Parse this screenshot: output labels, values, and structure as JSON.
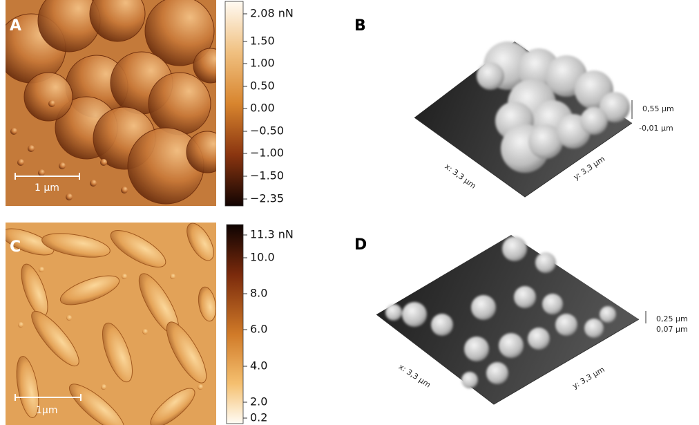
{
  "panels": [
    {
      "label": "A",
      "scale_bar": "1 µm",
      "colorbar": {
        "labels": [
          "2.08 nN",
          "1.50",
          "1.00",
          "0.50",
          "0.00",
          "−0.50",
          "−1.00",
          "−1.50",
          "−2.35"
        ]
      }
    },
    {
      "label": "B",
      "axes": {
        "x": "x: 3,3 µm",
        "y": "y: 3,3 µm",
        "z_top": "0,55 µm",
        "z_bottom": "-0,01 µm"
      }
    },
    {
      "label": "C",
      "scale_bar": "1µm",
      "colorbar": {
        "labels": [
          "11.3 nN",
          "10.0",
          "8.0",
          "6.0",
          "4.0",
          "2.0",
          "0.2"
        ]
      }
    },
    {
      "label": "D",
      "axes": {
        "x": "x: 3,3 µm",
        "y": "y: 3,3 µm",
        "z_top": "0,25 µm",
        "z_bottom": "0,07 µm"
      }
    }
  ]
}
